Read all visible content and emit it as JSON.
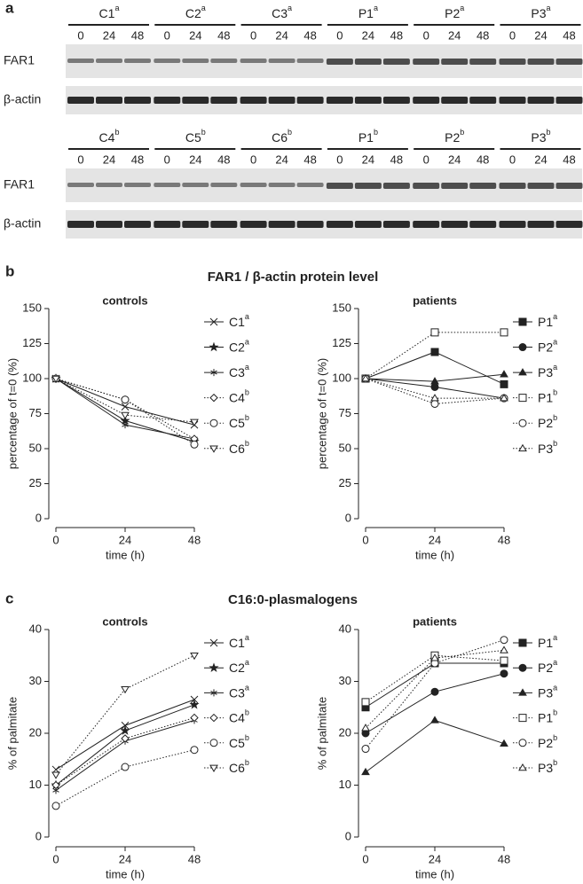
{
  "panel_labels": [
    "a",
    "b",
    "c"
  ],
  "blots": [
    {
      "groups": [
        {
          "name": "C1",
          "superscript": "a"
        },
        {
          "name": "C2",
          "superscript": "a"
        },
        {
          "name": "C3",
          "superscript": "a"
        },
        {
          "name": "P1",
          "superscript": "a"
        },
        {
          "name": "P2",
          "superscript": "a"
        },
        {
          "name": "P3",
          "superscript": "a"
        }
      ],
      "times": [
        0,
        24,
        48
      ],
      "rows": [
        "FAR1",
        "β-actin"
      ]
    },
    {
      "groups": [
        {
          "name": "C4",
          "superscript": "b"
        },
        {
          "name": "C5",
          "superscript": "b"
        },
        {
          "name": "C6",
          "superscript": "b"
        },
        {
          "name": "P1",
          "superscript": "b"
        },
        {
          "name": "P2",
          "superscript": "b"
        },
        {
          "name": "P3",
          "superscript": "b"
        }
      ],
      "times": [
        0,
        24,
        48
      ],
      "rows": [
        "FAR1",
        "β-actin"
      ]
    }
  ],
  "section_titles": [
    "FAR1 / β-actin protein level",
    "C16:0-plasmalogens"
  ],
  "chart_data": [
    {
      "type": "line",
      "title": "controls",
      "ylabel": "percentage of t=0 (%)",
      "xlabel": "time (h)",
      "x": [
        0,
        24,
        48
      ],
      "xlim": [
        0,
        48
      ],
      "xticks": [
        0,
        24,
        48
      ],
      "ylim": [
        0,
        150
      ],
      "yticks": [
        0,
        25,
        50,
        75,
        100,
        125,
        150
      ],
      "series": [
        {
          "name": "C1",
          "superscript": "a",
          "color": "#222222",
          "marker": "x",
          "filled": false,
          "dash": "solid",
          "values": [
            100,
            80,
            67
          ]
        },
        {
          "name": "C2",
          "superscript": "a",
          "color": "#222222",
          "marker": "star",
          "filled": true,
          "dash": "solid",
          "values": [
            100,
            70,
            55
          ]
        },
        {
          "name": "C3",
          "superscript": "a",
          "color": "#222222",
          "marker": "asterisk",
          "filled": false,
          "dash": "solid",
          "values": [
            100,
            67,
            57
          ]
        },
        {
          "name": "C4",
          "superscript": "b",
          "color": "#222222",
          "marker": "diamond",
          "filled": false,
          "dash": "dotted",
          "values": [
            100,
            85,
            57
          ]
        },
        {
          "name": "C5",
          "superscript": "b",
          "color": "#222222",
          "marker": "circle",
          "filled": false,
          "dash": "dotted",
          "values": [
            100,
            85,
            53
          ]
        },
        {
          "name": "C6",
          "superscript": "b",
          "color": "#222222",
          "marker": "triangle-down",
          "filled": false,
          "dash": "dotted",
          "values": [
            100,
            74,
            69
          ]
        }
      ]
    },
    {
      "type": "line",
      "title": "patients",
      "ylabel": "percentage of t=0 (%)",
      "xlabel": "time (h)",
      "x": [
        0,
        24,
        48
      ],
      "xlim": [
        0,
        48
      ],
      "xticks": [
        0,
        24,
        48
      ],
      "ylim": [
        0,
        150
      ],
      "yticks": [
        0,
        25,
        50,
        75,
        100,
        125,
        150
      ],
      "series": [
        {
          "name": "P1",
          "superscript": "a",
          "color": "#222222",
          "marker": "square",
          "filled": true,
          "dash": "solid",
          "values": [
            100,
            119,
            96
          ]
        },
        {
          "name": "P2",
          "superscript": "a",
          "color": "#222222",
          "marker": "circle",
          "filled": true,
          "dash": "solid",
          "values": [
            100,
            94,
            86
          ]
        },
        {
          "name": "P3",
          "superscript": "a",
          "color": "#222222",
          "marker": "triangle",
          "filled": true,
          "dash": "solid",
          "values": [
            100,
            98,
            103
          ]
        },
        {
          "name": "P1",
          "superscript": "b",
          "color": "#222222",
          "marker": "square",
          "filled": false,
          "dash": "dotted",
          "values": [
            100,
            133,
            133
          ]
        },
        {
          "name": "P2",
          "superscript": "b",
          "color": "#222222",
          "marker": "circle",
          "filled": false,
          "dash": "dotted",
          "values": [
            100,
            82,
            86
          ]
        },
        {
          "name": "P3",
          "superscript": "b",
          "color": "#222222",
          "marker": "triangle",
          "filled": false,
          "dash": "dotted",
          "values": [
            100,
            86,
            86
          ]
        }
      ]
    },
    {
      "type": "line",
      "title": "controls",
      "ylabel": "% of palmitate",
      "xlabel": "time (h)",
      "x": [
        0,
        24,
        48
      ],
      "xlim": [
        0,
        48
      ],
      "xticks": [
        0,
        24,
        48
      ],
      "ylim": [
        0,
        40
      ],
      "yticks": [
        0,
        10,
        20,
        30,
        40
      ],
      "series": [
        {
          "name": "C1",
          "superscript": "a",
          "color": "#222222",
          "marker": "x",
          "filled": false,
          "dash": "solid",
          "values": [
            13,
            21.5,
            26.5
          ]
        },
        {
          "name": "C2",
          "superscript": "a",
          "color": "#222222",
          "marker": "star",
          "filled": true,
          "dash": "solid",
          "values": [
            10,
            20.5,
            25.5
          ]
        },
        {
          "name": "C3",
          "superscript": "a",
          "color": "#222222",
          "marker": "asterisk",
          "filled": false,
          "dash": "solid",
          "values": [
            9,
            18.5,
            22.5
          ]
        },
        {
          "name": "C4",
          "superscript": "b",
          "color": "#222222",
          "marker": "diamond",
          "filled": false,
          "dash": "dotted",
          "values": [
            10,
            19,
            23
          ]
        },
        {
          "name": "C5",
          "superscript": "b",
          "color": "#222222",
          "marker": "circle",
          "filled": false,
          "dash": "dotted",
          "values": [
            6,
            13.5,
            16.8
          ]
        },
        {
          "name": "C6",
          "superscript": "b",
          "color": "#222222",
          "marker": "triangle-down",
          "filled": false,
          "dash": "dotted",
          "values": [
            12,
            28.5,
            35
          ]
        }
      ]
    },
    {
      "type": "line",
      "title": "patients",
      "ylabel": "% of palmitate",
      "xlabel": "time (h)",
      "x": [
        0,
        24,
        48
      ],
      "xlim": [
        0,
        48
      ],
      "xticks": [
        0,
        24,
        48
      ],
      "ylim": [
        0,
        40
      ],
      "yticks": [
        0,
        10,
        20,
        30,
        40
      ],
      "series": [
        {
          "name": "P1",
          "superscript": "a",
          "color": "#222222",
          "marker": "square",
          "filled": true,
          "dash": "solid",
          "values": [
            25,
            33.5,
            33.5
          ]
        },
        {
          "name": "P2",
          "superscript": "a",
          "color": "#222222",
          "marker": "circle",
          "filled": true,
          "dash": "solid",
          "values": [
            20,
            28,
            31.5
          ]
        },
        {
          "name": "P3",
          "superscript": "a",
          "color": "#222222",
          "marker": "triangle",
          "filled": true,
          "dash": "solid",
          "values": [
            12.5,
            22.5,
            18
          ]
        },
        {
          "name": "P1",
          "superscript": "b",
          "color": "#222222",
          "marker": "square",
          "filled": false,
          "dash": "dotted",
          "values": [
            26,
            35,
            34
          ]
        },
        {
          "name": "P2",
          "superscript": "b",
          "color": "#222222",
          "marker": "circle",
          "filled": false,
          "dash": "dotted",
          "values": [
            17,
            33.5,
            38
          ]
        },
        {
          "name": "P3",
          "superscript": "b",
          "color": "#222222",
          "marker": "triangle",
          "filled": false,
          "dash": "dotted",
          "values": [
            21,
            34.5,
            36
          ]
        }
      ]
    }
  ]
}
